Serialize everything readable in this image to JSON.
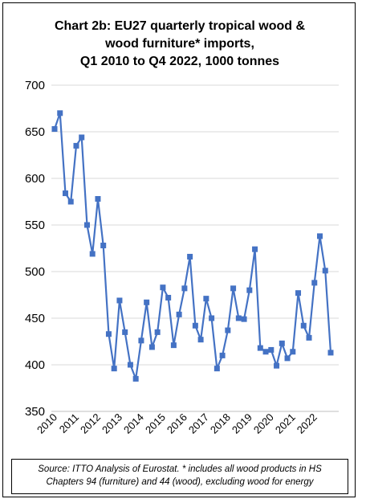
{
  "title_lines": [
    "Chart 2b: EU27 quarterly tropical wood &",
    "wood furniture* imports,",
    "Q1 2010 to Q4 2022, 1000 tonnes"
  ],
  "source_lines": [
    "Source: ITTO Analysis of Eurostat. * includes all wood products in HS",
    "Chapters 94 (furniture) and 44 (wood), excluding wood for energy"
  ],
  "colors": {
    "series": "#4472c4",
    "grid": "#d9d9d9",
    "axis": "#bfbfbf"
  },
  "chart_data": {
    "type": "line",
    "title": "Chart 2b: EU27 quarterly tropical wood & wood furniture* imports, Q1 2010 to Q4 2022, 1000 tonnes",
    "xlabel": "",
    "ylabel": "",
    "ylim": [
      350,
      700
    ],
    "yticks": [
      350,
      400,
      450,
      500,
      550,
      600,
      650,
      700
    ],
    "grid": "horizontal",
    "markers": "square",
    "x_tick_labels": [
      "2010",
      "2011",
      "2012",
      "2013",
      "2014",
      "2015",
      "2016",
      "2017",
      "2018",
      "2019",
      "2020",
      "2021",
      "2022"
    ],
    "series": [
      {
        "values": [
          653,
          670,
          584,
          575,
          635,
          644,
          550,
          519,
          578,
          528,
          433,
          396,
          469,
          435,
          400,
          385,
          426,
          467,
          419,
          435,
          483,
          472,
          421,
          454,
          482,
          516,
          442,
          427,
          471,
          450,
          396,
          410,
          437,
          482,
          450,
          449,
          480,
          524,
          418,
          414,
          416,
          399,
          423,
          407,
          414,
          477,
          442,
          429,
          488,
          538,
          501,
          413
        ]
      }
    ]
  }
}
